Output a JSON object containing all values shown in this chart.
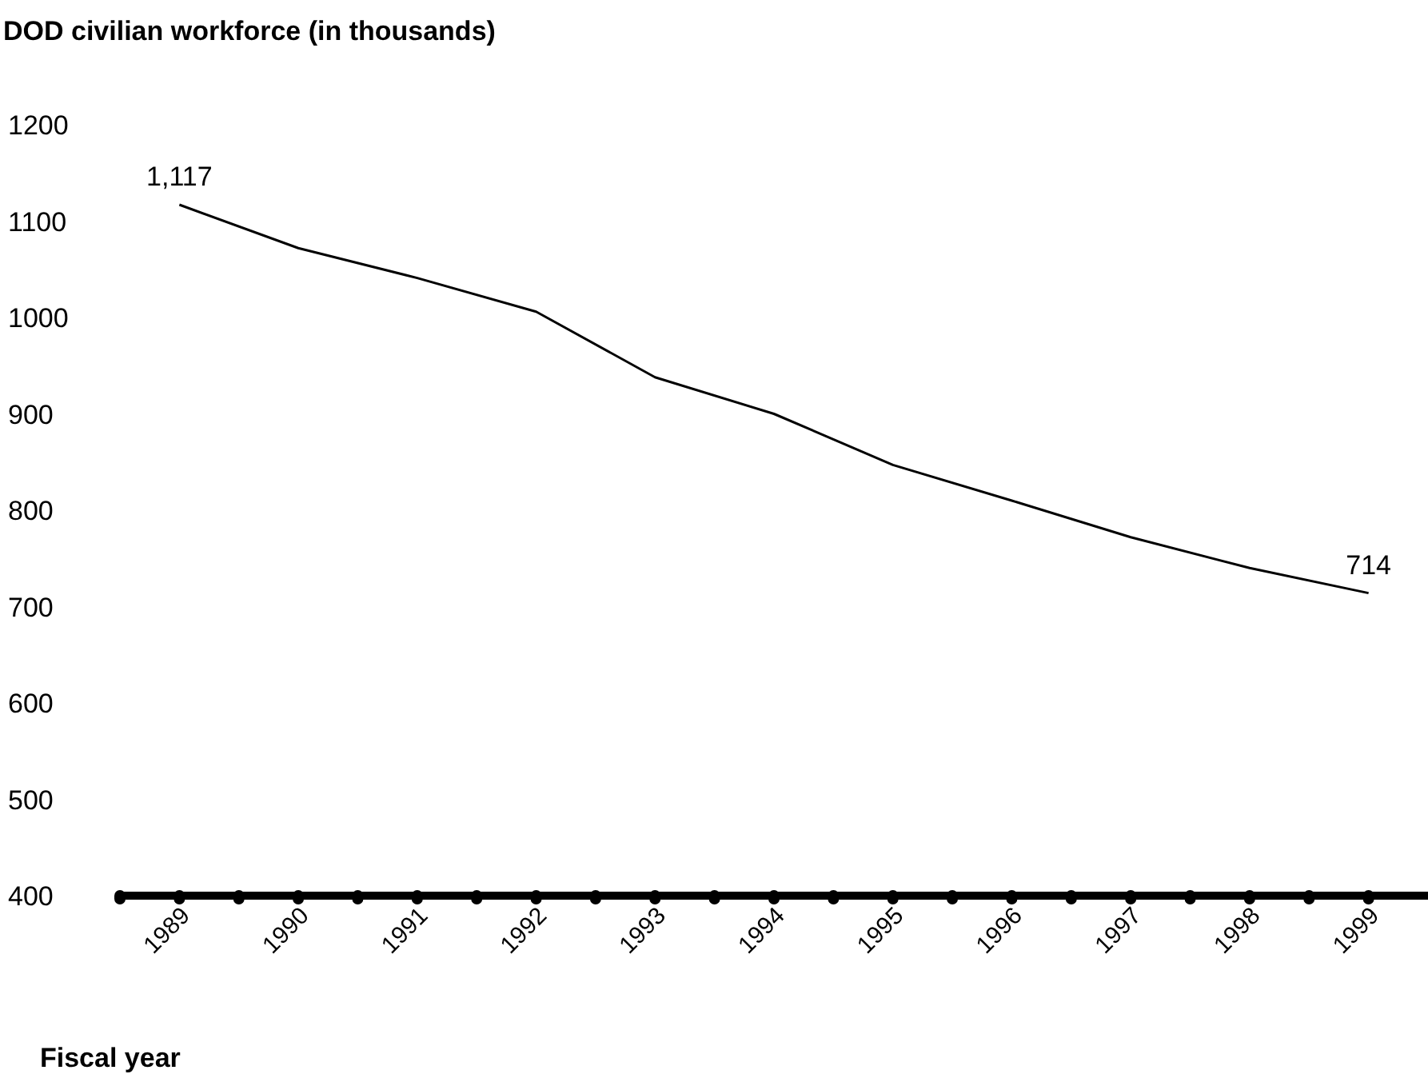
{
  "chart_data": {
    "type": "line",
    "title": "DOD civilian workforce (in thousands)",
    "xlabel": "Fiscal year",
    "x": [
      1989,
      1990,
      1991,
      1992,
      1993,
      1994,
      1995,
      1996,
      1997,
      1998,
      1999
    ],
    "series": [
      {
        "color": "#000000",
        "values": [
          1117,
          1072,
          1041,
          1006,
          938,
          900,
          847,
          810,
          772,
          740,
          714
        ],
        "value_labels": [
          "1,117",
          null,
          null,
          null,
          null,
          null,
          null,
          null,
          null,
          null,
          "714"
        ]
      }
    ],
    "xlim": [
      1988.5,
      1999.5
    ],
    "xticks": [
      {
        "value": 1988.5,
        "label": null
      },
      {
        "value": 1989,
        "label": "1989"
      },
      {
        "value": 1989.5,
        "label": null
      },
      {
        "value": 1990,
        "label": "1990"
      },
      {
        "value": 1990.5,
        "label": null
      },
      {
        "value": 1991,
        "label": "1991"
      },
      {
        "value": 1991.5,
        "label": null
      },
      {
        "value": 1992,
        "label": "1992"
      },
      {
        "value": 1992.5,
        "label": null
      },
      {
        "value": 1993,
        "label": "1993"
      },
      {
        "value": 1993.5,
        "label": null
      },
      {
        "value": 1994,
        "label": "1994"
      },
      {
        "value": 1994.5,
        "label": null
      },
      {
        "value": 1995,
        "label": "1995"
      },
      {
        "value": 1995.5,
        "label": null
      },
      {
        "value": 1996,
        "label": "1996"
      },
      {
        "value": 1996.5,
        "label": null
      },
      {
        "value": 1997,
        "label": "1997"
      },
      {
        "value": 1997.5,
        "label": null
      },
      {
        "value": 1998,
        "label": "1998"
      },
      {
        "value": 1998.5,
        "label": null
      },
      {
        "value": 1999,
        "label": "1999"
      }
    ],
    "ylim": [
      400,
      1200
    ],
    "yticks": [
      400,
      500,
      600,
      700,
      800,
      900,
      1000,
      1100,
      1200
    ],
    "grid": false,
    "legend": false,
    "marker": "none",
    "line_style": "solid"
  }
}
